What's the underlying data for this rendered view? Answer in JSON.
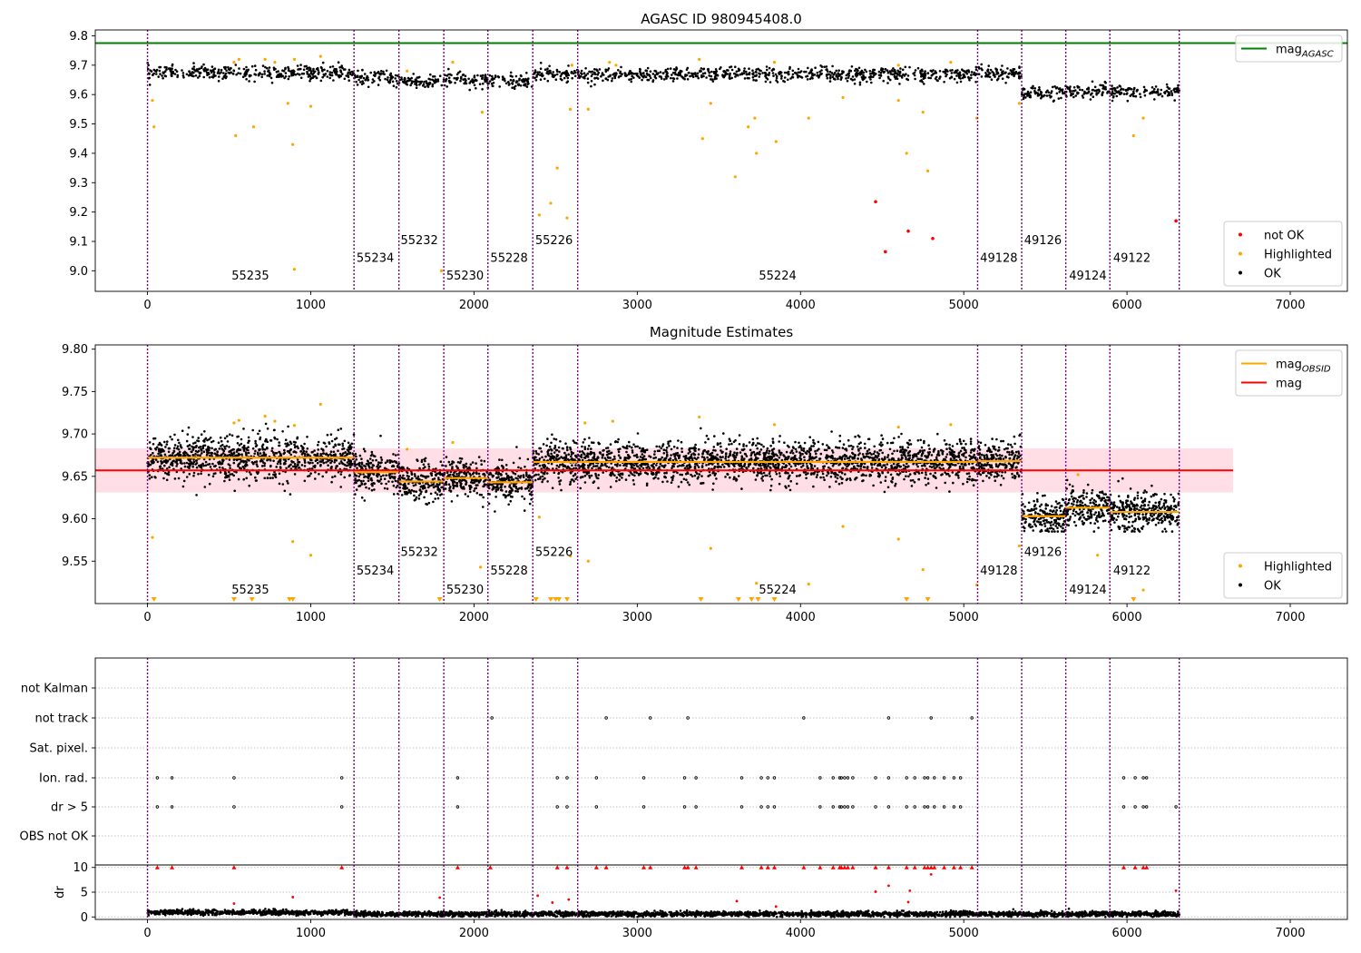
{
  "figure": {
    "background": "#ffffff",
    "colors": {
      "ok": "#000000",
      "highlighted": "#ffa500",
      "not_ok": "#ff0000",
      "agasc_line": "#008000",
      "mag_line": "#ff0000",
      "mag_obsid": "#ffa500",
      "obsid_divider": "#800080",
      "band": "#ffc0cb",
      "grid": "#b0b0b0"
    }
  },
  "chart_data": [
    {
      "id": "panel-agasc",
      "type": "scatter",
      "title": "AGASC ID 980945408.0",
      "xlabel": "",
      "ylabel": "",
      "xlim": [
        -320,
        7350
      ],
      "ylim": [
        8.93,
        9.82
      ],
      "xticks": [
        0,
        1000,
        2000,
        3000,
        4000,
        5000,
        6000,
        7000
      ],
      "yticks": [
        9.0,
        9.1,
        9.2,
        9.3,
        9.4,
        9.5,
        9.6,
        9.7,
        9.8
      ],
      "ytick_labels": [
        "9.0",
        "9.1",
        "9.2",
        "9.3",
        "9.4",
        "9.5",
        "9.6",
        "9.7",
        "9.8"
      ],
      "horizontal_line": {
        "name": "mag_AGASC",
        "y": 9.775,
        "x_range": [
          -320,
          7350
        ]
      },
      "legends": [
        {
          "position": "upper right",
          "entries": [
            {
              "label": "mag",
              "sub": "AGASC",
              "color": "#008000",
              "marker": "line"
            }
          ]
        },
        {
          "position": "lower right",
          "entries": [
            {
              "label": "not OK",
              "color": "#ff0000",
              "marker": "dot"
            },
            {
              "label": "Highlighted",
              "color": "#ffa500",
              "marker": "dot"
            },
            {
              "label": "OK",
              "color": "#000000",
              "marker": "dot"
            }
          ]
        }
      ],
      "obsid_boundaries": [
        0,
        1265,
        1540,
        1815,
        2085,
        2360,
        2635,
        5085,
        5355,
        5625,
        5895,
        6320
      ],
      "obsid_labels": [
        {
          "text": "55235",
          "x": 630,
          "y": 8.97
        },
        {
          "text": "55234",
          "x": 1395,
          "y": 9.03
        },
        {
          "text": "55232",
          "x": 1665,
          "y": 9.09
        },
        {
          "text": "55230",
          "x": 1945,
          "y": 8.97
        },
        {
          "text": "55228",
          "x": 2215,
          "y": 9.03
        },
        {
          "text": "55226",
          "x": 2490,
          "y": 9.09
        },
        {
          "text": "55224",
          "x": 3860,
          "y": 8.97
        },
        {
          "text": "49128",
          "x": 5215,
          "y": 9.03
        },
        {
          "text": "49126",
          "x": 5485,
          "y": 9.09
        },
        {
          "text": "49124",
          "x": 5760,
          "y": 8.97
        },
        {
          "text": "49122",
          "x": 6030,
          "y": 9.03
        }
      ],
      "ok_segments": [
        {
          "x": [
            0,
            1265
          ],
          "mean": 9.675,
          "spread": 0.012
        },
        {
          "x": [
            1265,
            1540
          ],
          "mean": 9.655,
          "spread": 0.012
        },
        {
          "x": [
            1540,
            1815
          ],
          "mean": 9.645,
          "spread": 0.012
        },
        {
          "x": [
            1815,
            2085
          ],
          "mean": 9.65,
          "spread": 0.012
        },
        {
          "x": [
            2085,
            2360
          ],
          "mean": 9.645,
          "spread": 0.012
        },
        {
          "x": [
            2360,
            2635
          ],
          "mean": 9.67,
          "spread": 0.012
        },
        {
          "x": [
            2635,
            5085
          ],
          "mean": 9.668,
          "spread": 0.012
        },
        {
          "x": [
            5085,
            5355
          ],
          "mean": 9.675,
          "spread": 0.012
        },
        {
          "x": [
            5355,
            5625
          ],
          "mean": 9.605,
          "spread": 0.012
        },
        {
          "x": [
            5625,
            5895
          ],
          "mean": 9.612,
          "spread": 0.012
        },
        {
          "x": [
            5895,
            6320
          ],
          "mean": 9.608,
          "spread": 0.012
        }
      ],
      "highlighted_points": [
        [
          30,
          9.58
        ],
        [
          40,
          9.49
        ],
        [
          540,
          9.46
        ],
        [
          650,
          9.49
        ],
        [
          860,
          9.57
        ],
        [
          890,
          9.43
        ],
        [
          900,
          9.005
        ],
        [
          1000,
          9.56
        ],
        [
          1800,
          9.0
        ],
        [
          2050,
          9.54
        ],
        [
          2400,
          9.19
        ],
        [
          2470,
          9.23
        ],
        [
          2510,
          9.35
        ],
        [
          2570,
          9.18
        ],
        [
          2590,
          9.55
        ],
        [
          2700,
          9.55
        ],
        [
          3400,
          9.45
        ],
        [
          3450,
          9.57
        ],
        [
          3600,
          9.32
        ],
        [
          3680,
          9.49
        ],
        [
          3720,
          9.52
        ],
        [
          3730,
          9.4
        ],
        [
          3850,
          9.44
        ],
        [
          4050,
          9.52
        ],
        [
          4260,
          9.59
        ],
        [
          4600,
          9.58
        ],
        [
          4650,
          9.4
        ],
        [
          4750,
          9.54
        ],
        [
          4780,
          9.34
        ],
        [
          5080,
          9.52
        ],
        [
          5340,
          9.57
        ],
        [
          6040,
          9.46
        ],
        [
          6100,
          9.52
        ],
        [
          530,
          9.71
        ],
        [
          560,
          9.72
        ],
        [
          720,
          9.72
        ],
        [
          780,
          9.71
        ],
        [
          900,
          9.72
        ],
        [
          1060,
          9.73
        ],
        [
          1590,
          9.68
        ],
        [
          1870,
          9.71
        ],
        [
          2600,
          9.7
        ],
        [
          2830,
          9.71
        ],
        [
          2870,
          9.7
        ],
        [
          3380,
          9.72
        ],
        [
          3840,
          9.71
        ],
        [
          4600,
          9.7
        ],
        [
          4920,
          9.71
        ]
      ],
      "not_ok_points": [
        [
          4460,
          9.235
        ],
        [
          4520,
          9.065
        ],
        [
          4660,
          9.135
        ],
        [
          4810,
          9.11
        ],
        [
          6300,
          9.17
        ]
      ]
    },
    {
      "id": "panel-estimates",
      "type": "scatter",
      "title": "Magnitude Estimates",
      "xlabel": "",
      "ylabel": "",
      "xlim": [
        -320,
        7350
      ],
      "ylim": [
        9.5,
        9.805
      ],
      "xticks": [
        0,
        1000,
        2000,
        3000,
        4000,
        5000,
        6000,
        7000
      ],
      "yticks": [
        9.55,
        9.6,
        9.65,
        9.7,
        9.75,
        9.8
      ],
      "ytick_labels": [
        "9.55",
        "9.60",
        "9.65",
        "9.70",
        "9.75",
        "9.80"
      ],
      "mag_line": {
        "name": "mag",
        "y": 9.657,
        "x_range": [
          -320,
          6650
        ]
      },
      "band": {
        "y": [
          9.631,
          9.683
        ],
        "x_range": [
          -320,
          6650
        ]
      },
      "mag_obsid": [
        {
          "x": [
            0,
            1265
          ],
          "y": 9.672
        },
        {
          "x": [
            1265,
            1540
          ],
          "y": 9.655
        },
        {
          "x": [
            1540,
            1815
          ],
          "y": 9.644
        },
        {
          "x": [
            1815,
            2085
          ],
          "y": 9.648
        },
        {
          "x": [
            2085,
            2360
          ],
          "y": 9.643
        },
        {
          "x": [
            2360,
            2635
          ],
          "y": 9.667
        },
        {
          "x": [
            2635,
            5085
          ],
          "y": 9.667
        },
        {
          "x": [
            5085,
            5355
          ],
          "y": 9.668
        },
        {
          "x": [
            5355,
            5625
          ],
          "y": 9.603
        },
        {
          "x": [
            5625,
            5895
          ],
          "y": 9.613
        },
        {
          "x": [
            5895,
            6320
          ],
          "y": 9.608
        }
      ],
      "legends": [
        {
          "position": "upper right",
          "entries": [
            {
              "label": "mag",
              "sub": "OBSID",
              "color": "#ffa500",
              "marker": "line"
            },
            {
              "label": "mag",
              "sub": "",
              "color": "#ff0000",
              "marker": "line"
            }
          ]
        },
        {
          "position": "lower right",
          "entries": [
            {
              "label": "Highlighted",
              "color": "#ffa500",
              "marker": "dot"
            },
            {
              "label": "OK",
              "color": "#000000",
              "marker": "dot"
            }
          ]
        }
      ],
      "obsid_labels": [
        {
          "text": "55235",
          "x": 630,
          "y": 9.512
        },
        {
          "text": "55234",
          "x": 1395,
          "y": 9.534
        },
        {
          "text": "55232",
          "x": 1665,
          "y": 9.556
        },
        {
          "text": "55230",
          "x": 1945,
          "y": 9.512
        },
        {
          "text": "55228",
          "x": 2215,
          "y": 9.534
        },
        {
          "text": "55226",
          "x": 2490,
          "y": 9.556
        },
        {
          "text": "55224",
          "x": 3860,
          "y": 9.512
        },
        {
          "text": "49128",
          "x": 5215,
          "y": 9.534
        },
        {
          "text": "49126",
          "x": 5485,
          "y": 9.556
        },
        {
          "text": "49124",
          "x": 5760,
          "y": 9.512
        },
        {
          "text": "49122",
          "x": 6030,
          "y": 9.534
        }
      ],
      "ok_segments": [
        {
          "x": [
            0,
            1265
          ],
          "mean": 9.672,
          "spread": 0.013
        },
        {
          "x": [
            1265,
            1540
          ],
          "mean": 9.655,
          "spread": 0.012
        },
        {
          "x": [
            1540,
            1815
          ],
          "mean": 9.644,
          "spread": 0.011
        },
        {
          "x": [
            1815,
            2085
          ],
          "mean": 9.648,
          "spread": 0.011
        },
        {
          "x": [
            2085,
            2360
          ],
          "mean": 9.643,
          "spread": 0.011
        },
        {
          "x": [
            2360,
            2635
          ],
          "mean": 9.667,
          "spread": 0.013
        },
        {
          "x": [
            2635,
            5085
          ],
          "mean": 9.667,
          "spread": 0.012
        },
        {
          "x": [
            5085,
            5355
          ],
          "mean": 9.668,
          "spread": 0.012
        },
        {
          "x": [
            5355,
            5625
          ],
          "mean": 9.603,
          "spread": 0.011
        },
        {
          "x": [
            5625,
            5895
          ],
          "mean": 9.613,
          "spread": 0.011
        },
        {
          "x": [
            5895,
            6320
          ],
          "mean": 9.608,
          "spread": 0.011
        }
      ],
      "highlighted_points": [
        [
          30,
          9.578
        ],
        [
          890,
          9.573
        ],
        [
          1000,
          9.557
        ],
        [
          2040,
          9.543
        ],
        [
          2400,
          9.602
        ],
        [
          2590,
          9.556
        ],
        [
          2700,
          9.55
        ],
        [
          3450,
          9.565
        ],
        [
          3730,
          9.524
        ],
        [
          4050,
          9.523
        ],
        [
          4260,
          9.591
        ],
        [
          4600,
          9.576
        ],
        [
          4750,
          9.54
        ],
        [
          5080,
          9.522
        ],
        [
          5340,
          9.568
        ],
        [
          5820,
          9.557
        ],
        [
          6100,
          9.516
        ],
        [
          530,
          9.713
        ],
        [
          560,
          9.716
        ],
        [
          720,
          9.721
        ],
        [
          780,
          9.715
        ],
        [
          900,
          9.71
        ],
        [
          1060,
          9.735
        ],
        [
          1590,
          9.682
        ],
        [
          1870,
          9.69
        ],
        [
          2680,
          9.713
        ],
        [
          2850,
          9.715
        ],
        [
          3380,
          9.72
        ],
        [
          3840,
          9.711
        ],
        [
          4600,
          9.708
        ],
        [
          4920,
          9.711
        ],
        [
          5700,
          9.652
        ]
      ],
      "highlighted_triangles": [
        40,
        530,
        640,
        870,
        890,
        1790,
        2380,
        2470,
        2500,
        2520,
        2570,
        3390,
        3620,
        3700,
        3740,
        3840,
        4650,
        4780,
        6040
      ]
    },
    {
      "id": "panel-flags",
      "type": "scatter",
      "title": "",
      "xlabel": "",
      "ylabel": "",
      "xlim": [
        -320,
        7350
      ],
      "categories": [
        "not Kalman",
        "not track",
        "Sat. pixel.",
        "Ion. rad.",
        "dr > 5",
        "OBS not OK"
      ],
      "flag_points": {
        "not track": [
          2110,
          2810,
          3080,
          3310,
          4020,
          4540,
          4800,
          5050
        ],
        "Ion. rad.": [
          60,
          150,
          530,
          1190,
          1900,
          2510,
          2570,
          2750,
          3040,
          3290,
          3360,
          3640,
          3760,
          3800,
          3840,
          4120,
          4200,
          4240,
          4250,
          4270,
          4290,
          4320,
          4460,
          4540,
          4650,
          4700,
          4760,
          4780,
          4820,
          4880,
          4940,
          4980,
          5980,
          6050,
          6100,
          6120
        ],
        "dr > 5": [
          60,
          150,
          530,
          1190,
          1900,
          2510,
          2570,
          2750,
          3040,
          3290,
          3360,
          3640,
          3760,
          3800,
          3840,
          4120,
          4200,
          4240,
          4250,
          4270,
          4290,
          4320,
          4460,
          4540,
          4650,
          4700,
          4760,
          4780,
          4820,
          4880,
          4940,
          4980,
          5980,
          6050,
          6100,
          6120,
          6300
        ]
      }
    },
    {
      "id": "panel-dr",
      "type": "scatter",
      "title": "",
      "xlabel": "",
      "ylabel": "dr",
      "xlim": [
        -320,
        7350
      ],
      "ylim": [
        -0.5,
        10.5
      ],
      "xticks": [
        0,
        1000,
        2000,
        3000,
        4000,
        5000,
        6000,
        7000
      ],
      "yticks": [
        0,
        5,
        10
      ],
      "ok_level": 0.6,
      "capped_value": 10,
      "dr_points": [
        [
          890,
          4.0
        ],
        [
          1790,
          3.9
        ],
        [
          2390,
          4.3
        ],
        [
          2580,
          3.5
        ],
        [
          2480,
          2.9
        ],
        [
          3610,
          3.2
        ],
        [
          3850,
          2.1
        ],
        [
          4460,
          5.1
        ],
        [
          4540,
          6.3
        ],
        [
          4660,
          3.0
        ],
        [
          4670,
          5.3
        ],
        [
          4800,
          8.6
        ],
        [
          6300,
          5.3
        ],
        [
          530,
          2.7
        ]
      ],
      "capped_points": [
        60,
        150,
        530,
        1190,
        1900,
        2100,
        2510,
        2570,
        2750,
        2810,
        3040,
        3080,
        3290,
        3310,
        3360,
        3640,
        3760,
        3800,
        3840,
        4020,
        4120,
        4200,
        4240,
        4250,
        4270,
        4290,
        4320,
        4460,
        4540,
        4650,
        4700,
        4760,
        4780,
        4800,
        4820,
        4880,
        4940,
        4980,
        5050,
        5980,
        6050,
        6100,
        6120
      ]
    }
  ]
}
